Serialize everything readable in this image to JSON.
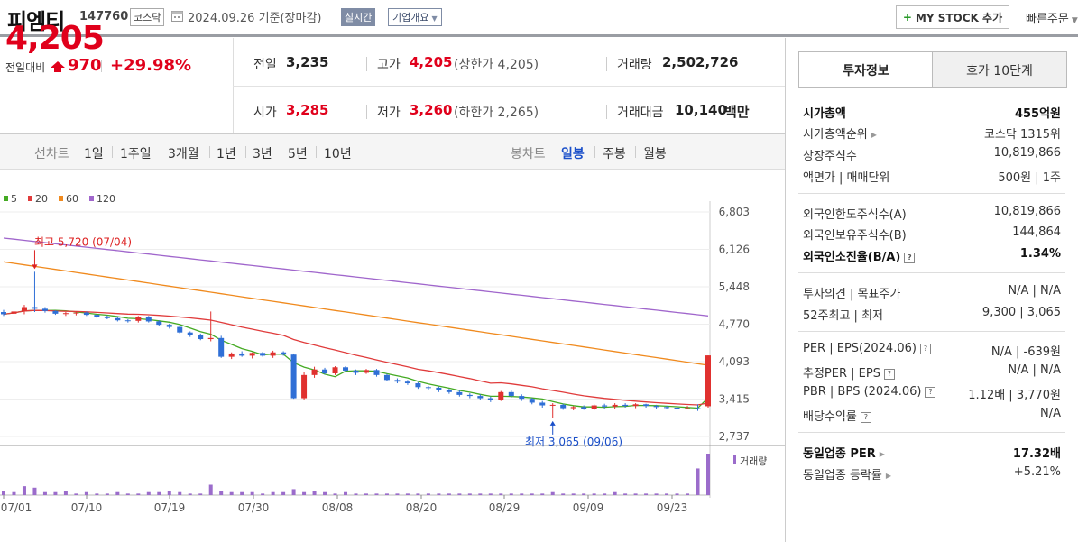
{
  "header": {
    "stock_name": "피엠티",
    "stock_code": "147760",
    "market": "코스닥",
    "base_date": "2024.09.26 기준(장마감)",
    "realtime": "실시간",
    "company_overview": "기업개요",
    "mystock_button": "MY STOCK 추가",
    "quick_order": "빠른주문"
  },
  "price": {
    "current": "4,205",
    "change_label": "전일대비",
    "change_value": "970",
    "change_percent": "+29.98%"
  },
  "stats": {
    "prev_close_label": "전일",
    "prev_close": "3,235",
    "high_label": "고가",
    "high": "4,205",
    "upper_limit_label": "(상한가 4,205)",
    "volume_label": "거래량",
    "volume": "2,502,726",
    "open_label": "시가",
    "open": "3,285",
    "low_label": "저가",
    "low": "3,260",
    "lower_limit_label": "(하한가 2,265)",
    "amount_label": "거래대금",
    "amount": "10,140",
    "amount_unit": "백만"
  },
  "toolbar": {
    "line_chart_label": "선차트",
    "periods": [
      "1일",
      "1주일",
      "3개월",
      "1년",
      "3년",
      "5년",
      "10년"
    ],
    "candle_chart_label": "봉차트",
    "candle_periods": [
      "일봉",
      "주봉",
      "월봉"
    ]
  },
  "chart_data": {
    "type": "candlestick",
    "legend": [
      "5",
      "20",
      "60",
      "120"
    ],
    "legend_colors": [
      "#44aa22",
      "#e03b3b",
      "#f08a1e",
      "#a066cc"
    ],
    "y_ticks": [
      "6,803",
      "6,126",
      "5,448",
      "4,770",
      "4,093",
      "3,415",
      "2,737"
    ],
    "ylim": [
      2737,
      6803
    ],
    "x_ticks": [
      "07/01",
      "07/10",
      "07/19",
      "07/30",
      "08/08",
      "08/20",
      "08/29",
      "09/09",
      "09/23"
    ],
    "high_annotation": "최고 5,720 (07/04)",
    "low_annotation": "최저 3,065 (09/06)",
    "volume_label": "거래량",
    "candles": [
      [
        4990,
        5030,
        4920,
        4950
      ],
      [
        4960,
        5050,
        4900,
        5000
      ],
      [
        5000,
        5120,
        4950,
        5080
      ],
      [
        5080,
        5720,
        4990,
        5050
      ],
      [
        5050,
        5080,
        4980,
        5010
      ],
      [
        5010,
        5020,
        4940,
        4960
      ],
      [
        4960,
        4990,
        4920,
        4970
      ],
      [
        4970,
        5000,
        4930,
        4980
      ],
      [
        4980,
        5000,
        4920,
        4940
      ],
      [
        4940,
        4960,
        4880,
        4900
      ],
      [
        4900,
        4930,
        4860,
        4880
      ],
      [
        4880,
        4900,
        4820,
        4840
      ],
      [
        4840,
        4860,
        4800,
        4830
      ],
      [
        4830,
        4920,
        4800,
        4900
      ],
      [
        4900,
        4920,
        4800,
        4820
      ],
      [
        4820,
        4840,
        4740,
        4760
      ],
      [
        4760,
        4780,
        4690,
        4720
      ],
      [
        4720,
        4730,
        4600,
        4620
      ],
      [
        4620,
        4640,
        4540,
        4580
      ],
      [
        4580,
        4600,
        4480,
        4500
      ],
      [
        4500,
        5000,
        4460,
        4520
      ],
      [
        4520,
        4560,
        4160,
        4180
      ],
      [
        4180,
        4260,
        4140,
        4240
      ],
      [
        4240,
        4280,
        4180,
        4200
      ],
      [
        4200,
        4260,
        4150,
        4250
      ],
      [
        4250,
        4270,
        4180,
        4200
      ],
      [
        4200,
        4290,
        4160,
        4260
      ],
      [
        4260,
        4280,
        4200,
        4220
      ],
      [
        4220,
        4240,
        3420,
        3430
      ],
      [
        3430,
        3900,
        3400,
        3850
      ],
      [
        3850,
        4000,
        3800,
        3950
      ],
      [
        3950,
        3980,
        3860,
        3880
      ],
      [
        3880,
        4010,
        3850,
        3990
      ],
      [
        3990,
        4010,
        3900,
        3930
      ],
      [
        3930,
        3950,
        3850,
        3890
      ],
      [
        3890,
        3960,
        3870,
        3940
      ],
      [
        3940,
        3960,
        3820,
        3850
      ],
      [
        3850,
        3870,
        3740,
        3760
      ],
      [
        3760,
        3790,
        3700,
        3730
      ],
      [
        3730,
        3760,
        3670,
        3700
      ],
      [
        3700,
        3720,
        3600,
        3630
      ],
      [
        3630,
        3650,
        3570,
        3620
      ],
      [
        3620,
        3640,
        3540,
        3570
      ],
      [
        3570,
        3600,
        3510,
        3540
      ],
      [
        3540,
        3570,
        3460,
        3490
      ],
      [
        3490,
        3520,
        3430,
        3470
      ],
      [
        3470,
        3500,
        3400,
        3430
      ],
      [
        3430,
        3460,
        3360,
        3400
      ],
      [
        3400,
        3560,
        3380,
        3540
      ],
      [
        3540,
        3580,
        3440,
        3470
      ],
      [
        3470,
        3500,
        3380,
        3420
      ],
      [
        3420,
        3440,
        3320,
        3350
      ],
      [
        3350,
        3380,
        3260,
        3300
      ],
      [
        3300,
        3340,
        3065,
        3310
      ],
      [
        3310,
        3330,
        3220,
        3250
      ],
      [
        3250,
        3290,
        3210,
        3270
      ],
      [
        3270,
        3300,
        3220,
        3230
      ],
      [
        3230,
        3320,
        3210,
        3300
      ],
      [
        3300,
        3330,
        3230,
        3280
      ],
      [
        3280,
        3340,
        3240,
        3310
      ],
      [
        3310,
        3340,
        3260,
        3290
      ],
      [
        3290,
        3340,
        3250,
        3320
      ],
      [
        3320,
        3330,
        3260,
        3290
      ],
      [
        3290,
        3310,
        3240,
        3270
      ],
      [
        3270,
        3290,
        3240,
        3260
      ],
      [
        3260,
        3290,
        3230,
        3240
      ],
      [
        3240,
        3290,
        3230,
        3250
      ],
      [
        3250,
        3320,
        3200,
        3235
      ],
      [
        3285,
        4205,
        3260,
        4205
      ]
    ]
  },
  "right_panel": {
    "tabs": [
      "투자정보",
      "호가 10단계"
    ],
    "rows1": [
      {
        "label": "시가총액",
        "value": "455억원",
        "bold": true
      },
      {
        "label": "시가총액순위",
        "value": "코스닥 1315위",
        "arrow": true
      },
      {
        "label": "상장주식수",
        "value": "10,819,866"
      },
      {
        "label": "액면가 | 매매단위",
        "value": "500원 | 1주"
      }
    ],
    "rows2": [
      {
        "label": "외국인한도주식수(A)",
        "value": "10,819,866"
      },
      {
        "label": "외국인보유주식수(B)",
        "value": "144,864"
      },
      {
        "label": "외국인소진율(B/A)",
        "value": "1.34%",
        "bold": true,
        "help": true
      }
    ],
    "rows3": [
      {
        "label": "투자의견 | 목표주가",
        "value": "N/A | N/A"
      },
      {
        "label": "52주최고 | 최저",
        "value": "9,300 | 3,065"
      }
    ],
    "rows4": [
      {
        "label": "PER | EPS(2024.06)",
        "value": "N/A | -639원",
        "help": true
      },
      {
        "label": "추정PER | EPS",
        "value": "N/A | N/A",
        "help": true
      },
      {
        "label": "PBR | BPS (2024.06)",
        "value": "1.12배 | 3,770원",
        "help": true
      },
      {
        "label": "배당수익률",
        "value": "N/A",
        "help": true
      }
    ],
    "rows5": [
      {
        "label": "동일업종 PER",
        "value": "17.32배",
        "bold": true,
        "arrow": true
      },
      {
        "label": "동일업종 등락률",
        "value": "+5.21%",
        "red": true,
        "arrow": true
      }
    ]
  }
}
